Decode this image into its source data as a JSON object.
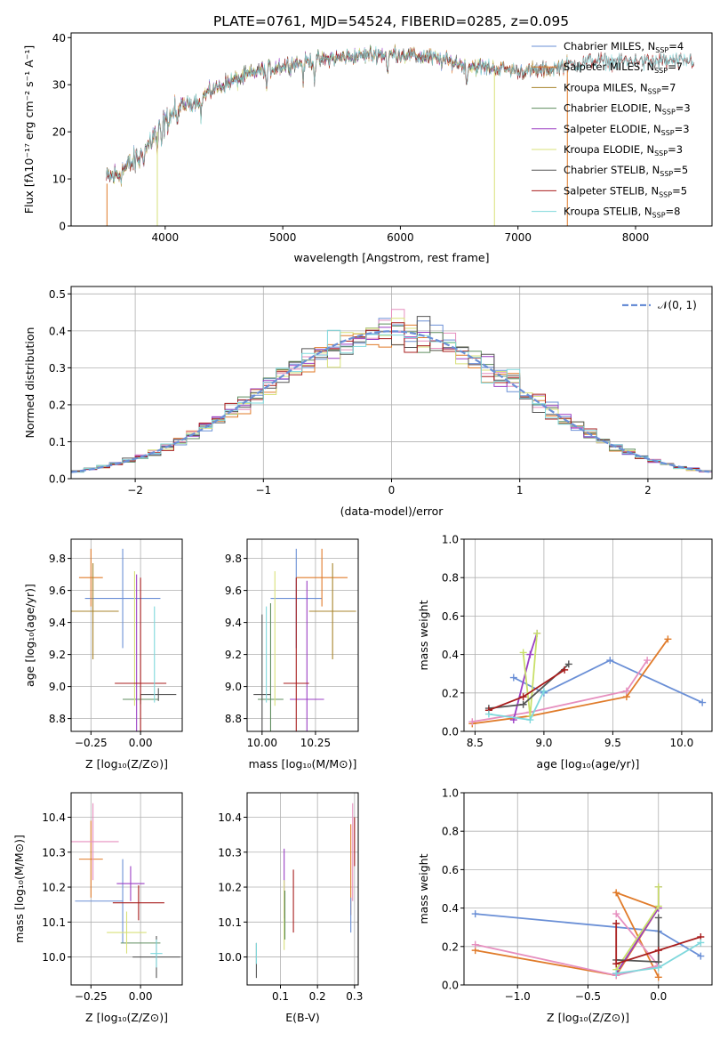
{
  "figure_title": "PLATE=0761, MJD=54524, FIBERID=0285, z=0.095",
  "colors": {
    "Chabrier MILES": "#6a8fd6",
    "Salpeter MILES": "#e07b2a",
    "Kroupa MILES": "#a8842c",
    "Chabrier ELODIE": "#5f8d5f",
    "Salpeter ELODIE": "#9b3fc4",
    "Kroupa ELODIE": "#d8e07a",
    "Chabrier STELIB": "#555555",
    "Salpeter STELIB": "#a81d1d",
    "Kroupa STELIB": "#7fd8dc",
    "Kroupa ELODIE (weights)": "#c9e06a",
    "Kroupa MILES (weights)": "#e68fbf",
    "grid": "#b0b0b0"
  },
  "chart_data": [
    {
      "id": "spectrum",
      "type": "line",
      "title": "PLATE=0761, MJD=54524, FIBERID=0285, z=0.095",
      "xlabel": "wavelength [Angstrom, rest frame]",
      "ylabel": "Flux [fλ10⁻¹⁷ erg cm⁻² s⁻¹ A⁻¹]",
      "xlim": [
        3200,
        8650
      ],
      "ylim": [
        0,
        41
      ],
      "xticks": [
        "4000",
        "5000",
        "6000",
        "7000",
        "8000"
      ],
      "xtick_values": [
        4000,
        5000,
        6000,
        7000,
        8000
      ],
      "yticks": [
        "0",
        "10",
        "20",
        "30",
        "40"
      ],
      "ytick_values": [
        0,
        10,
        20,
        30,
        40
      ],
      "grid": false,
      "legend_placement": "upper-right",
      "series": [
        {
          "name": "Chabrier MILES, Nₛₛₚ=4",
          "legend": [
            "Chabrier MILES, N",
            "SSP",
            "=4"
          ],
          "key": "Chabrier MILES",
          "x": [
            3500,
            7420
          ]
        },
        {
          "name": "Salpeter MILES, Nₛₛₚ=7",
          "legend": [
            "Salpeter MILES, N",
            "SSP",
            "=7"
          ],
          "key": "Salpeter MILES",
          "x": [
            3500,
            7420
          ]
        },
        {
          "name": "Kroupa MILES, Nₛₛₚ=7",
          "legend": [
            "Kroupa MILES, N",
            "SSP",
            "=7"
          ],
          "key": "Kroupa MILES",
          "x": [
            3500,
            7420
          ]
        },
        {
          "name": "Chabrier ELODIE, Nₛₛₚ=3",
          "legend": [
            "Chabrier ELODIE, N",
            "SSP",
            "=3"
          ],
          "key": "Chabrier ELODIE",
          "x": [
            3500,
            6800
          ]
        },
        {
          "name": "Salpeter ELODIE, Nₛₛₚ=3",
          "legend": [
            "Salpeter ELODIE, N",
            "SSP",
            "=3"
          ],
          "key": "Salpeter ELODIE",
          "x": [
            3500,
            6800
          ]
        },
        {
          "name": "Kroupa ELODIE, Nₛₛₚ=3",
          "legend": [
            "Kroupa ELODIE, N",
            "SSP",
            "=3"
          ],
          "key": "Kroupa ELODIE",
          "x": [
            3500,
            6800
          ]
        },
        {
          "name": "Chabrier STELIB, Nₛₛₚ=5",
          "legend": [
            "Chabrier STELIB, N",
            "SSP",
            "=5"
          ],
          "key": "Chabrier STELIB",
          "x": [
            3500,
            8500
          ]
        },
        {
          "name": "Salpeter STELIB, Nₛₛₚ=5",
          "legend": [
            "Salpeter STELIB, N",
            "SSP",
            "=5"
          ],
          "key": "Salpeter STELIB",
          "x": [
            3500,
            8500
          ]
        },
        {
          "name": "Kroupa STELIB, Nₛₛₚ=8",
          "legend": [
            "Kroupa STELIB, N",
            "SSP",
            "=8"
          ],
          "key": "Kroupa STELIB",
          "x": [
            3500,
            8500
          ]
        }
      ],
      "continuum": {
        "x": [
          3500,
          3600,
          3700,
          3800,
          3900,
          4000,
          4100,
          4200,
          4300,
          4400,
          4600,
          4800,
          5000,
          5200,
          5400,
          5600,
          5800,
          6000,
          6200,
          6400,
          6600,
          6800,
          7000,
          7200,
          7400,
          7600,
          7800,
          8000,
          8200,
          8400,
          8500
        ],
        "y": [
          10,
          11,
          13,
          15,
          19,
          22,
          25,
          26,
          27,
          29,
          31,
          33,
          34,
          35,
          35.5,
          36,
          36.5,
          36.5,
          36,
          35,
          34,
          33.5,
          33,
          33,
          34,
          35,
          35,
          35,
          35,
          35,
          35
        ]
      },
      "notes": {
        "balmer_drop_x": 3933,
        "absorption_features_x": [
          3933,
          3968,
          4102,
          4304,
          4861,
          5175,
          5270,
          5892,
          6563
        ]
      }
    },
    {
      "id": "residuals",
      "type": "bar",
      "xlabel": "(data-model)/error",
      "ylabel": "Normed distribution",
      "xlim": [
        -2.5,
        2.5
      ],
      "ylim": [
        0,
        0.52
      ],
      "xticks": [
        "−2",
        "−1",
        "0",
        "1",
        "2"
      ],
      "xtick_values": [
        -2,
        -1,
        0,
        1,
        2
      ],
      "yticks": [
        "0.0",
        "0.1",
        "0.2",
        "0.3",
        "0.4",
        "0.5"
      ],
      "ytick_values": [
        0,
        0.1,
        0.2,
        0.3,
        0.4,
        0.5
      ],
      "grid": true,
      "legend": "𝒩(0, 1)",
      "legend_placement": "upper-right",
      "bin_width": 0.1
    },
    {
      "id": "age-vs-Z",
      "type": "scatter",
      "xlabel": "Z [log₁₀(Z/Z⊙)]",
      "ylabel": "age  [log₁₀(age/yr)]",
      "xlim": [
        -0.35,
        0.21
      ],
      "ylim": [
        8.72,
        9.92
      ],
      "xticks": [
        "−0.25",
        "0.00"
      ],
      "xtick_values": [
        -0.25,
        0
      ],
      "yticks": [
        "8.8",
        "9.0",
        "9.2",
        "9.4",
        "9.6",
        "9.8"
      ],
      "ytick_values": [
        8.8,
        9.0,
        9.2,
        9.4,
        9.6,
        9.8
      ],
      "grid": true,
      "errorbars": [
        {
          "key": "Chabrier MILES",
          "x": -0.09,
          "y": 9.55,
          "xerr": 0.19,
          "yerr": 0.31
        },
        {
          "key": "Salpeter MILES",
          "x": -0.25,
          "y": 9.68,
          "xerr": 0.06,
          "yerr": 0.18
        },
        {
          "key": "Kroupa MILES",
          "x": -0.24,
          "y": 9.47,
          "xerr": 0.13,
          "yerr": 0.3
        },
        {
          "key": "Chabrier ELODIE",
          "x": 0.0,
          "y": 8.92,
          "xerr": 0.09,
          "yerr": 0.03
        },
        {
          "key": "Salpeter ELODIE",
          "x": -0.02,
          "y": 9.2,
          "xerr": 0.0,
          "yerr": 0.5
        },
        {
          "key": "Kroupa ELODIE",
          "x": -0.03,
          "y": 9.3,
          "xerr": 0.0,
          "yerr": 0.42
        },
        {
          "key": "Chabrier STELIB",
          "x": 0.09,
          "y": 8.95,
          "xerr": 0.09,
          "yerr": 0.04
        },
        {
          "key": "Salpeter STELIB",
          "x": 0.0,
          "y": 9.02,
          "xerr": 0.13,
          "yerr": 0.0
        },
        {
          "key": "Salpeter STELIB",
          "x": 0.0,
          "y": 9.2,
          "xerr": 0.0,
          "yerr": 0.48
        },
        {
          "key": "Kroupa STELIB",
          "x": 0.07,
          "y": 9.2,
          "xerr": 0.0,
          "yerr": 0.3
        }
      ]
    },
    {
      "id": "age-vs-mass",
      "type": "scatter",
      "xlabel": "mass [log₁₀(M/M⊙)]",
      "ylabel": "",
      "xlim": [
        9.93,
        10.45
      ],
      "ylim": [
        8.72,
        9.92
      ],
      "xticks": [
        "10.00",
        "10.25"
      ],
      "xtick_values": [
        10.0,
        10.25
      ],
      "yticks": [
        "8.8",
        "9.0",
        "9.2",
        "9.4",
        "9.6",
        "9.8"
      ],
      "ytick_values": [
        8.8,
        9.0,
        9.2,
        9.4,
        9.6,
        9.8
      ],
      "grid": true,
      "errorbars": [
        {
          "key": "Chabrier MILES",
          "x": 10.16,
          "y": 9.55,
          "xerr": 0.12,
          "yerr": 0.31
        },
        {
          "key": "Salpeter MILES",
          "x": 10.28,
          "y": 9.68,
          "xerr": 0.12,
          "yerr": 0.18
        },
        {
          "key": "Kroupa MILES",
          "x": 10.33,
          "y": 9.47,
          "xerr": 0.11,
          "yerr": 0.3
        },
        {
          "key": "Chabrier ELODIE",
          "x": 10.04,
          "y": 8.92,
          "xerr": 0.06,
          "yerr": 0.6
        },
        {
          "key": "Salpeter ELODIE",
          "x": 10.21,
          "y": 8.92,
          "xerr": 0.08,
          "yerr": 0.74
        },
        {
          "key": "Kroupa ELODIE",
          "x": 10.06,
          "y": 9.3,
          "xerr": 0.0,
          "yerr": 0.42
        },
        {
          "key": "Chabrier STELIB",
          "x": 10.0,
          "y": 8.95,
          "xerr": 0.04,
          "yerr": 0.5
        },
        {
          "key": "Salpeter STELIB",
          "x": 10.16,
          "y": 9.02,
          "xerr": 0.06,
          "yerr": 0.0
        },
        {
          "key": "Salpeter STELIB",
          "x": 10.16,
          "y": 9.2,
          "xerr": 0.0,
          "yerr": 0.48
        },
        {
          "key": "Kroupa STELIB",
          "x": 10.02,
          "y": 9.2,
          "xerr": 0.0,
          "yerr": 0.3
        }
      ]
    },
    {
      "id": "weight-vs-age",
      "type": "line",
      "xlabel": "age  [log₁₀(age/yr)]",
      "ylabel": "mass weight",
      "xlim": [
        8.42,
        10.22
      ],
      "ylim": [
        0,
        1
      ],
      "xticks": [
        "8.5",
        "9.0",
        "9.5",
        "10.0"
      ],
      "xtick_values": [
        8.5,
        9.0,
        9.5,
        10.0
      ],
      "yticks": [
        "0.0",
        "0.2",
        "0.4",
        "0.6",
        "0.8",
        "1.0"
      ],
      "ytick_values": [
        0,
        0.2,
        0.4,
        0.6,
        0.8,
        1.0
      ],
      "grid": true,
      "series": [
        {
          "key": "Chabrier MILES",
          "x": [
            8.78,
            9.0,
            9.48,
            10.15
          ],
          "y": [
            0.28,
            0.2,
            0.37,
            0.15
          ]
        },
        {
          "key": "Salpeter MILES",
          "x": [
            8.48,
            8.9,
            9.6,
            9.9
          ],
          "y": [
            0.04,
            0.08,
            0.18,
            0.48
          ]
        },
        {
          "key": "Kroupa MILES (weights)",
          "x": [
            8.48,
            8.9,
            9.6,
            9.75
          ],
          "y": [
            0.05,
            0.1,
            0.21,
            0.37
          ]
        },
        {
          "key": "Salpeter ELODIE",
          "x": [
            8.78,
            8.9,
            8.95
          ],
          "y": [
            0.06,
            0.4,
            0.51
          ]
        },
        {
          "key": "Kroupa ELODIE (weights)",
          "x": [
            8.85,
            8.9,
            8.95
          ],
          "y": [
            0.41,
            0.08,
            0.51
          ]
        },
        {
          "key": "Chabrier STELIB",
          "x": [
            8.6,
            8.85,
            9.18
          ],
          "y": [
            0.12,
            0.14,
            0.35
          ]
        },
        {
          "key": "Salpeter STELIB",
          "x": [
            8.6,
            8.85,
            9.15
          ],
          "y": [
            0.11,
            0.18,
            0.32
          ]
        },
        {
          "key": "Kroupa STELIB",
          "x": [
            8.6,
            8.9,
            9.0
          ],
          "y": [
            0.09,
            0.06,
            0.21
          ]
        }
      ]
    },
    {
      "id": "mass-vs-Z",
      "type": "scatter",
      "xlabel": "Z [log₁₀(Z/Z⊙)]",
      "ylabel": "mass [log₁₀(M/M⊙)]",
      "xlim": [
        -0.35,
        0.21
      ],
      "ylim": [
        9.92,
        10.47
      ],
      "xticks": [
        "−0.25",
        "0.00"
      ],
      "xtick_values": [
        -0.25,
        0
      ],
      "yticks": [
        "10.0",
        "10.1",
        "10.2",
        "10.3",
        "10.4"
      ],
      "ytick_values": [
        10.0,
        10.1,
        10.2,
        10.3,
        10.4
      ],
      "grid": true,
      "errorbars": [
        {
          "key": "Chabrier MILES",
          "x": -0.21,
          "y": 10.16,
          "xerr": 0.12,
          "yerr": 0.0
        },
        {
          "key": "Chabrier MILES",
          "x": -0.09,
          "y": 10.16,
          "xerr": 0.0,
          "yerr": 0.12
        },
        {
          "key": "Salpeter MILES",
          "x": -0.25,
          "y": 10.28,
          "xerr": 0.06,
          "yerr": 0.11
        },
        {
          "key": "Kroupa MILES (weights)",
          "x": -0.24,
          "y": 10.33,
          "xerr": 0.13,
          "yerr": 0.11
        },
        {
          "key": "Chabrier ELODIE",
          "x": 0.0,
          "y": 10.04,
          "xerr": 0.1,
          "yerr": 0.0
        },
        {
          "key": "Salpeter ELODIE",
          "x": -0.05,
          "y": 10.21,
          "xerr": 0.07,
          "yerr": 0.05
        },
        {
          "key": "Kroupa ELODIE",
          "x": -0.07,
          "y": 10.07,
          "xerr": 0.1,
          "yerr": 0.06
        },
        {
          "key": "Chabrier STELIB",
          "x": 0.08,
          "y": 10.0,
          "xerr": 0.12,
          "yerr": 0.06
        },
        {
          "key": "Salpeter STELIB",
          "x": -0.01,
          "y": 10.155,
          "xerr": 0.13,
          "yerr": 0.05
        },
        {
          "key": "Kroupa STELIB",
          "x": 0.08,
          "y": 10.01,
          "xerr": 0.03,
          "yerr": 0.04
        }
      ]
    },
    {
      "id": "mass-vs-ebv",
      "type": "scatter",
      "xlabel": "E(B-V)",
      "ylabel": "",
      "xlim": [
        0.01,
        0.31
      ],
      "ylim": [
        9.92,
        10.47
      ],
      "xticks": [
        "0.1",
        "0.2",
        "0.3"
      ],
      "xtick_values": [
        0.1,
        0.2,
        0.3
      ],
      "yticks": [
        "10.0",
        "10.1",
        "10.2",
        "10.3",
        "10.4"
      ],
      "ytick_values": [
        10.0,
        10.1,
        10.2,
        10.3,
        10.4
      ],
      "grid": true,
      "errorbars": [
        {
          "key": "Chabrier STELIB",
          "x": 0.035,
          "y": 9.99,
          "xerr": 0.0,
          "yerr": 0.05
        },
        {
          "key": "Kroupa STELIB",
          "x": 0.035,
          "y": 10.01,
          "xerr": 0.0,
          "yerr": 0.03
        },
        {
          "key": "Salpeter ELODIE",
          "x": 0.11,
          "y": 10.21,
          "xerr": 0.0,
          "yerr": 0.1
        },
        {
          "key": "Kroupa ELODIE",
          "x": 0.11,
          "y": 10.12,
          "xerr": 0.0,
          "yerr": 0.1
        },
        {
          "key": "Chabrier ELODIE",
          "x": 0.112,
          "y": 10.12,
          "xerr": 0.0,
          "yerr": 0.07
        },
        {
          "key": "Salpeter STELIB",
          "x": 0.135,
          "y": 10.16,
          "xerr": 0.0,
          "yerr": 0.09
        },
        {
          "key": "Salpeter MILES",
          "x": 0.29,
          "y": 10.25,
          "xerr": 0.0,
          "yerr": 0.13
        },
        {
          "key": "Kroupa MILES (weights)",
          "x": 0.295,
          "y": 10.3,
          "xerr": 0.0,
          "yerr": 0.14
        },
        {
          "key": "Chabrier MILES",
          "x": 0.29,
          "y": 10.12,
          "xerr": 0.0,
          "yerr": 0.05
        },
        {
          "key": "Salpeter STELIB",
          "x": 0.3,
          "y": 10.33,
          "xerr": 0.0,
          "yerr": 0.07
        }
      ]
    },
    {
      "id": "weight-vs-Z",
      "type": "line",
      "xlabel": "Z [log₁₀(Z/Z⊙)]",
      "ylabel": "mass weight",
      "xlim": [
        -1.38,
        0.38
      ],
      "ylim": [
        0,
        1
      ],
      "xticks": [
        "−1.0",
        "−0.5",
        "0.0"
      ],
      "xtick_values": [
        -1.0,
        -0.5,
        0.0
      ],
      "yticks": [
        "0.0",
        "0.2",
        "0.4",
        "0.6",
        "0.8",
        "1.0"
      ],
      "ytick_values": [
        0,
        0.2,
        0.4,
        0.6,
        0.8,
        1.0
      ],
      "grid": true,
      "series": [
        {
          "key": "Chabrier MILES",
          "x": [
            -1.3,
            0.0,
            0.3
          ],
          "y": [
            0.37,
            0.28,
            0.15
          ]
        },
        {
          "key": "Salpeter MILES",
          "x": [
            -1.3,
            -0.3,
            0.0,
            -0.3,
            0.0
          ],
          "y": [
            0.18,
            0.05,
            0.4,
            0.48,
            0.04
          ]
        },
        {
          "key": "Kroupa MILES (weights)",
          "x": [
            -1.3,
            -0.3,
            0.0,
            -0.3
          ],
          "y": [
            0.21,
            0.05,
            0.1,
            0.37
          ]
        },
        {
          "key": "Salpeter ELODIE",
          "x": [
            -0.3,
            0.0,
            0.0
          ],
          "y": [
            0.06,
            0.4,
            0.51
          ]
        },
        {
          "key": "Kroupa ELODIE (weights)",
          "x": [
            -0.3,
            0.0,
            0.0
          ],
          "y": [
            0.08,
            0.41,
            0.51
          ]
        },
        {
          "key": "Chabrier STELIB",
          "x": [
            -0.3,
            0.0,
            0.0
          ],
          "y": [
            0.13,
            0.12,
            0.35
          ]
        },
        {
          "key": "Salpeter STELIB",
          "x": [
            -0.3,
            -0.3,
            0.0,
            0.3
          ],
          "y": [
            0.32,
            0.11,
            0.18,
            0.25
          ]
        },
        {
          "key": "Kroupa STELIB",
          "x": [
            -0.3,
            0.0,
            0.3
          ],
          "y": [
            0.06,
            0.09,
            0.22
          ]
        }
      ]
    }
  ]
}
